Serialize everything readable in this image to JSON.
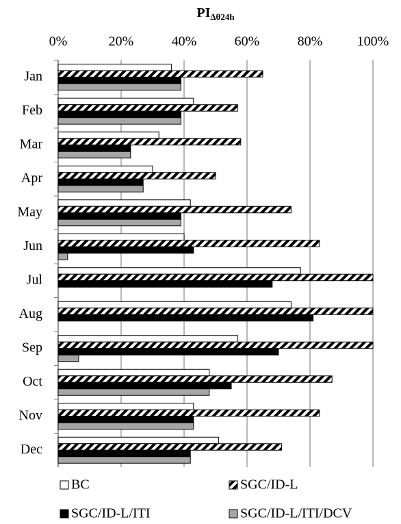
{
  "chart_data": {
    "type": "hbar",
    "title": "PI",
    "title_subscript": "Δθ24h",
    "categories": [
      "Jan",
      "Feb",
      "Mar",
      "Apr",
      "May",
      "Jun",
      "Jul",
      "Aug",
      "Sep",
      "Oct",
      "Nov",
      "Dec"
    ],
    "series": [
      {
        "name": "BC",
        "color": "#ffffff",
        "values": [
          36,
          43,
          32,
          30,
          42,
          40,
          77,
          74,
          57,
          48,
          43,
          51
        ]
      },
      {
        "name": "SGC/ID-L",
        "color": "#000000",
        "hatch": true,
        "values": [
          65,
          57,
          58,
          50,
          74,
          83,
          100,
          100,
          100,
          87,
          83,
          71
        ]
      },
      {
        "name": "SGC/ID-L/ITI",
        "color": "#000000",
        "values": [
          39,
          39,
          23,
          27,
          39,
          43,
          68,
          81,
          70,
          55,
          43,
          42
        ]
      },
      {
        "name": "SGC/ID-L/ITI/DCV",
        "color": "#a6a6a6",
        "values": [
          39,
          39,
          23,
          27,
          39,
          3,
          0,
          0,
          6.5,
          48,
          43,
          42
        ]
      }
    ],
    "xlim": [
      0,
      100
    ],
    "xticks": [
      {
        "value": 0,
        "label": "0%"
      },
      {
        "value": 20,
        "label": "20%"
      },
      {
        "value": 40,
        "label": "40%"
      },
      {
        "value": 60,
        "label": "60%"
      },
      {
        "value": 80,
        "label": "80%"
      },
      {
        "value": 100,
        "label": "100%"
      }
    ],
    "grid": true
  }
}
